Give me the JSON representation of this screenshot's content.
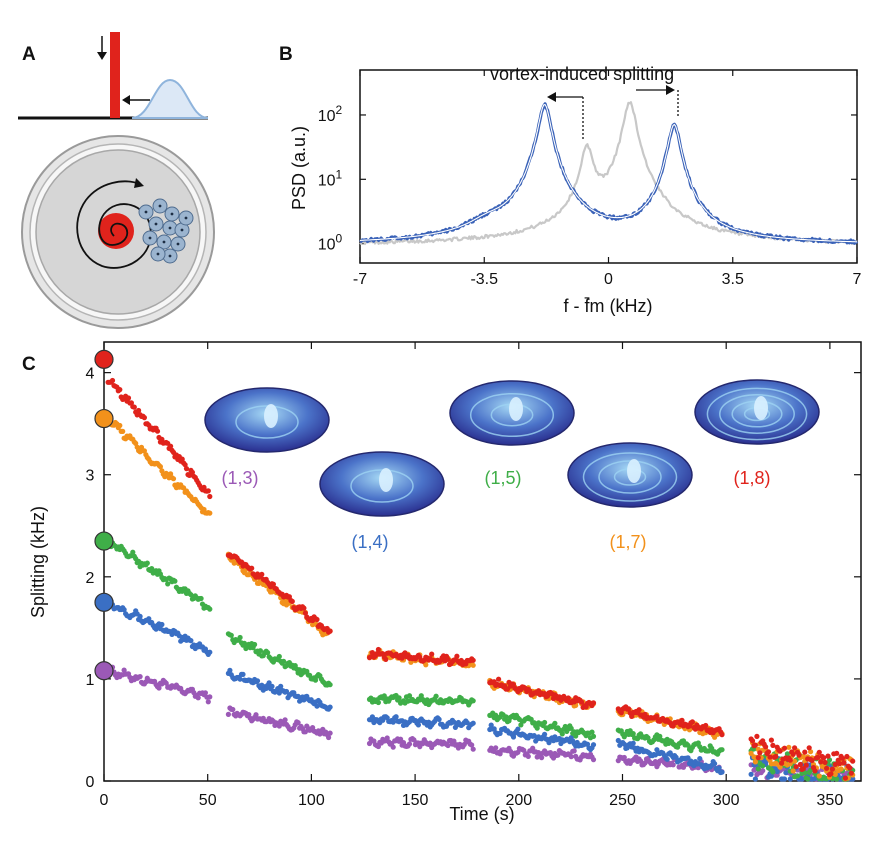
{
  "panels": {
    "a": "A",
    "b": "B",
    "c": "C"
  },
  "chart_data": [
    {
      "panel": "B",
      "type": "line",
      "yscale": "log",
      "xlabel": "f - f̄m (kHz)",
      "ylabel": "PSD (a.u.)",
      "xlim": [
        -7,
        7
      ],
      "ylim": [
        0.5,
        500
      ],
      "xticks": [
        "-7",
        "-3.5",
        "0",
        "3.5",
        "7"
      ],
      "yticks": [
        {
          "base": "10",
          "exp": "0"
        },
        {
          "base": "10",
          "exp": "1"
        },
        {
          "base": "10",
          "exp": "2"
        }
      ],
      "annotation": "vortex-induced splitting",
      "series": [
        {
          "color": "#c8c8c8",
          "peaks": [
            {
              "x": -0.6,
              "y": 30
            },
            {
              "x": 0.6,
              "y": 160
            }
          ],
          "baseline": 0.95
        },
        {
          "color": "#3a62b8",
          "peaks": [
            {
              "x": -1.8,
              "y": 145
            },
            {
              "x": 1.85,
              "y": 70
            },
            {
              "x": -3.4,
              "y": 0.6
            }
          ],
          "baseline": 0.95
        }
      ]
    },
    {
      "panel": "C",
      "type": "scatter",
      "xlabel": "Time (s)",
      "ylabel": "Splitting (kHz)",
      "xlim": [
        0,
        365
      ],
      "ylim": [
        0,
        4.3
      ],
      "xticks": [
        "0",
        "50",
        "100",
        "150",
        "200",
        "250",
        "300",
        "350"
      ],
      "yticks": [
        "0",
        "1",
        "2",
        "3",
        "4"
      ],
      "segments": [
        [
          2,
          51
        ],
        [
          60,
          109
        ],
        [
          128,
          178
        ],
        [
          186,
          236
        ],
        [
          248,
          298
        ],
        [
          312,
          361
        ]
      ],
      "modes": [
        {
          "label": "(1,3)",
          "color": "#9b59b6",
          "start_value": 1.08,
          "segment_values": [
            [
              1.08,
              0.82
            ],
            [
              0.68,
              0.46
            ],
            [
              0.38,
              0.36
            ],
            [
              0.3,
              0.24
            ],
            [
              0.22,
              0.12
            ],
            [
              0.14,
              0.03
            ]
          ]
        },
        {
          "label": "(1,4)",
          "color": "#3a6fc4",
          "start_value": 1.75,
          "segment_values": [
            [
              1.75,
              1.27
            ],
            [
              1.05,
              0.72
            ],
            [
              0.6,
              0.56
            ],
            [
              0.5,
              0.35
            ],
            [
              0.36,
              0.12
            ],
            [
              0.12,
              0.04
            ]
          ]
        },
        {
          "label": "(1,5)",
          "color": "#3fae48",
          "start_value": 2.35,
          "segment_values": [
            [
              2.35,
              1.7
            ],
            [
              1.42,
              0.94
            ],
            [
              0.8,
              0.78
            ],
            [
              0.65,
              0.45
            ],
            [
              0.48,
              0.28
            ],
            [
              0.22,
              0.06
            ]
          ]
        },
        {
          "label": "(1,7)",
          "color": "#f2911b",
          "start_value": 3.55,
          "segment_values": [
            [
              3.55,
              2.6
            ],
            [
              2.2,
              1.42
            ],
            [
              1.24,
              1.14
            ],
            [
              0.96,
              0.74
            ],
            [
              0.7,
              0.45
            ],
            [
              0.3,
              0.1
            ]
          ]
        },
        {
          "label": "(1,8)",
          "color": "#e0231c",
          "start_value": 4.13,
          "segment_values": [
            [
              3.95,
              2.8
            ],
            [
              2.25,
              1.45
            ],
            [
              1.25,
              1.16
            ],
            [
              0.97,
              0.74
            ],
            [
              0.7,
              0.47
            ],
            [
              0.33,
              0.12
            ]
          ]
        }
      ]
    }
  ]
}
